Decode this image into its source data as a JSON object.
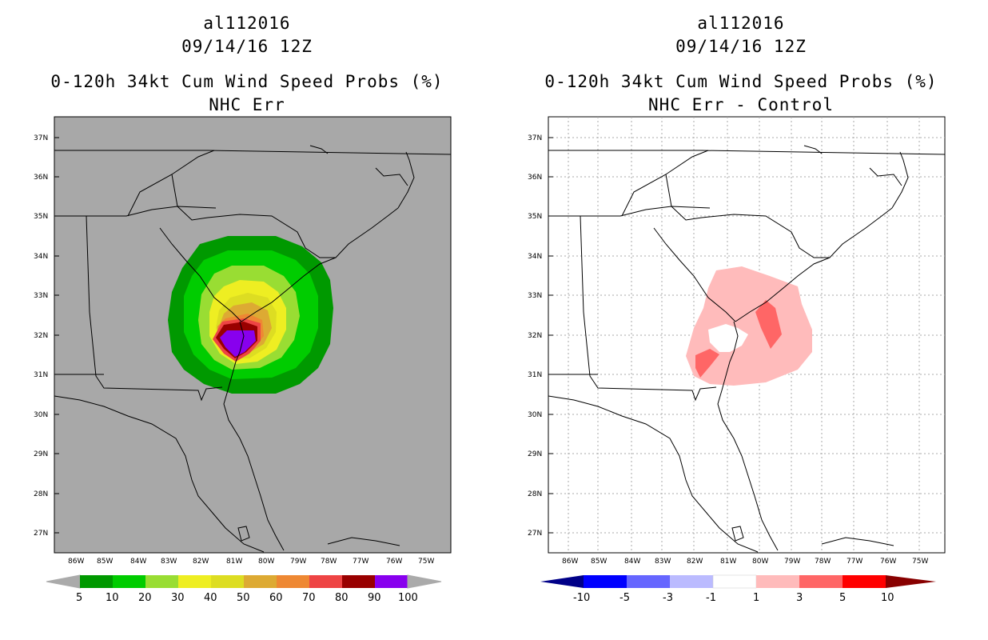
{
  "left": {
    "title_line1": "al112016",
    "title_line2": "09/14/16 12Z",
    "title_line3": "0-120h 34kt Cum Wind Speed Probs (%)",
    "title_line4": "NHC Err",
    "colorbar": {
      "labels": [
        "5",
        "10",
        "20",
        "30",
        "40",
        "50",
        "60",
        "70",
        "80",
        "90",
        "100"
      ],
      "colors": [
        "#009900",
        "#00cc00",
        "#99dd33",
        "#eeee22",
        "#dddd22",
        "#ddaa33",
        "#ee8833",
        "#ee4444",
        "#990000",
        "#8800ee"
      ],
      "end_color": "#aaaaaa"
    },
    "map_background": "#a8a8a8"
  },
  "right": {
    "title_line1": "al112016",
    "title_line2": "09/14/16 12Z",
    "title_line3": "0-120h 34kt Cum Wind Speed Probs (%)",
    "title_line4": "NHC Err - Control",
    "colorbar": {
      "labels": [
        "-10",
        "-5",
        "-3",
        "-1",
        "1",
        "3",
        "5",
        "10"
      ],
      "colors": [
        "#0000ff",
        "#6666ff",
        "#bbbbff",
        "#ffffff",
        "#ffbbbb",
        "#ff6666",
        "#ff0000"
      ],
      "low_end_color": "#000088",
      "high_end_color": "#880000"
    },
    "map_background": "#ffffff"
  },
  "axes": {
    "lat_labels": [
      "37N",
      "36N",
      "35N",
      "34N",
      "33N",
      "32N",
      "31N",
      "30N",
      "29N",
      "28N",
      "27N"
    ],
    "lon_labels": [
      "86W",
      "85W",
      "84W",
      "83W",
      "82W",
      "81W",
      "80W",
      "79W",
      "78W",
      "77W",
      "76W",
      "75W"
    ]
  }
}
